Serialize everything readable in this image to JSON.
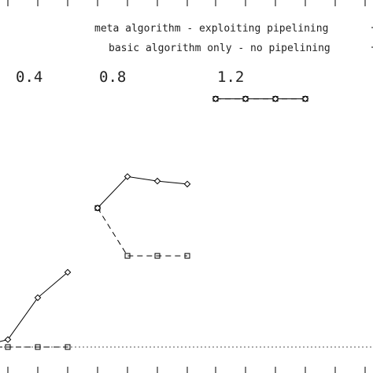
{
  "chart_data": {
    "type": "line",
    "group_labels": [
      "0.4",
      "0.8",
      "1.2"
    ],
    "series": [
      {
        "name": "meta algorithm - exploiting pipelining",
        "marker": "diamond",
        "line": "solid",
        "groups": [
          [
            0.0,
            0.05,
            0.33,
            0.5
          ],
          [
            0.93,
            1.14,
            1.11,
            1.09
          ],
          [
            1.66,
            1.66,
            1.66,
            1.66
          ]
        ]
      },
      {
        "name": "basic algorithm only - no pipelining",
        "marker": "square",
        "line": "dashed",
        "groups": [
          [
            0.0,
            0.0,
            0.0,
            0.0
          ],
          [
            0.93,
            0.61,
            0.61,
            0.61
          ],
          [
            1.66,
            1.66,
            1.66,
            1.66
          ]
        ]
      }
    ],
    "baseline": 0.0,
    "baseline_style": "dotted",
    "grid": false,
    "legend_placement": "top-right"
  }
}
